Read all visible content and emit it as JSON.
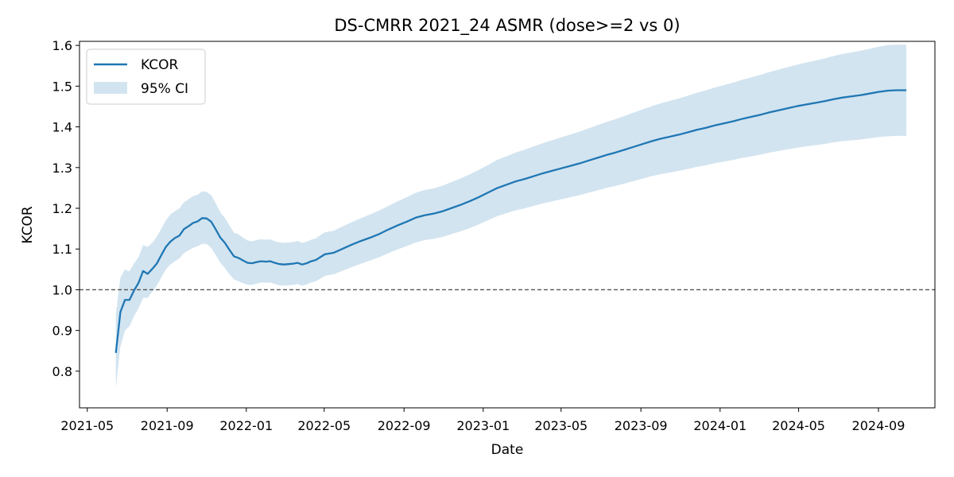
{
  "chart_data": {
    "type": "line",
    "title": "DS-CMRR 2021_24 ASMR (dose>=2 vs 0)",
    "xlabel": "Date",
    "ylabel": "KCOR",
    "x_ticks": [
      "2021-05",
      "2021-09",
      "2022-01",
      "2022-05",
      "2022-09",
      "2023-01",
      "2023-05",
      "2023-09",
      "2024-01",
      "2024-05",
      "2024-09"
    ],
    "y_ticks": [
      "0.8",
      "0.9",
      "1.0",
      "1.1",
      "1.2",
      "1.3",
      "1.4",
      "1.5",
      "1.6"
    ],
    "ylim": [
      0.71,
      1.61
    ],
    "xlim": [
      "2021-04-19",
      "2024-11-27"
    ],
    "reference_line": {
      "y": 1.0,
      "style": "dashed",
      "color": "#555555"
    },
    "legend": {
      "position": "upper-left",
      "entries": [
        "KCOR",
        "95% CI"
      ]
    },
    "grid": false,
    "colors": {
      "line": "#1f77b4",
      "band": "#1f77b4",
      "band_opacity": 0.2
    },
    "series": [
      {
        "name": "KCOR",
        "points": [
          [
            "2021-06-14",
            0.845
          ],
          [
            "2021-06-21",
            0.945
          ],
          [
            "2021-06-28",
            0.975
          ],
          [
            "2021-07-05",
            0.975
          ],
          [
            "2021-07-12",
            0.998
          ],
          [
            "2021-07-19",
            1.017
          ],
          [
            "2021-07-26",
            1.046
          ],
          [
            "2021-08-02",
            1.039
          ],
          [
            "2021-08-09",
            1.051
          ],
          [
            "2021-08-16",
            1.064
          ],
          [
            "2021-08-23",
            1.085
          ],
          [
            "2021-08-30",
            1.105
          ],
          [
            "2021-09-06",
            1.118
          ],
          [
            "2021-09-13",
            1.127
          ],
          [
            "2021-09-20",
            1.133
          ],
          [
            "2021-09-27",
            1.149
          ],
          [
            "2021-10-04",
            1.156
          ],
          [
            "2021-10-11",
            1.164
          ],
          [
            "2021-10-18",
            1.168
          ],
          [
            "2021-10-25",
            1.176
          ],
          [
            "2021-11-01",
            1.175
          ],
          [
            "2021-11-08",
            1.167
          ],
          [
            "2021-11-15",
            1.148
          ],
          [
            "2021-11-22",
            1.128
          ],
          [
            "2021-11-29",
            1.115
          ],
          [
            "2021-12-06",
            1.098
          ],
          [
            "2021-12-13",
            1.082
          ],
          [
            "2021-12-20",
            1.078
          ],
          [
            "2021-12-27",
            1.072
          ],
          [
            "2022-01-03",
            1.066
          ],
          [
            "2022-01-10",
            1.065
          ],
          [
            "2022-01-17",
            1.068
          ],
          [
            "2022-01-24",
            1.07
          ],
          [
            "2022-01-31",
            1.069
          ],
          [
            "2022-02-07",
            1.07
          ],
          [
            "2022-02-14",
            1.066
          ],
          [
            "2022-02-21",
            1.063
          ],
          [
            "2022-02-28",
            1.062
          ],
          [
            "2022-03-07",
            1.063
          ],
          [
            "2022-03-14",
            1.064
          ],
          [
            "2022-03-21",
            1.066
          ],
          [
            "2022-03-28",
            1.062
          ],
          [
            "2022-04-04",
            1.065
          ],
          [
            "2022-04-11",
            1.07
          ],
          [
            "2022-04-18",
            1.073
          ],
          [
            "2022-04-25",
            1.08
          ],
          [
            "2022-05-02",
            1.087
          ],
          [
            "2022-05-16",
            1.091
          ],
          [
            "2022-05-30",
            1.101
          ],
          [
            "2022-06-13",
            1.111
          ],
          [
            "2022-06-27",
            1.12
          ],
          [
            "2022-07-11",
            1.128
          ],
          [
            "2022-07-25",
            1.137
          ],
          [
            "2022-08-08",
            1.148
          ],
          [
            "2022-08-22",
            1.158
          ],
          [
            "2022-09-05",
            1.167
          ],
          [
            "2022-09-19",
            1.177
          ],
          [
            "2022-10-03",
            1.183
          ],
          [
            "2022-10-17",
            1.187
          ],
          [
            "2022-10-31",
            1.193
          ],
          [
            "2022-11-14",
            1.201
          ],
          [
            "2022-11-28",
            1.209
          ],
          [
            "2022-12-12",
            1.218
          ],
          [
            "2022-12-26",
            1.228
          ],
          [
            "2023-01-09",
            1.239
          ],
          [
            "2023-01-23",
            1.25
          ],
          [
            "2023-02-06",
            1.258
          ],
          [
            "2023-02-20",
            1.266
          ],
          [
            "2023-03-06",
            1.272
          ],
          [
            "2023-03-20",
            1.279
          ],
          [
            "2023-04-03",
            1.286
          ],
          [
            "2023-04-17",
            1.292
          ],
          [
            "2023-05-01",
            1.298
          ],
          [
            "2023-05-15",
            1.304
          ],
          [
            "2023-05-29",
            1.31
          ],
          [
            "2023-06-12",
            1.317
          ],
          [
            "2023-06-26",
            1.324
          ],
          [
            "2023-07-10",
            1.331
          ],
          [
            "2023-07-24",
            1.337
          ],
          [
            "2023-08-07",
            1.344
          ],
          [
            "2023-08-21",
            1.351
          ],
          [
            "2023-09-04",
            1.358
          ],
          [
            "2023-09-18",
            1.365
          ],
          [
            "2023-10-02",
            1.371
          ],
          [
            "2023-10-16",
            1.376
          ],
          [
            "2023-10-30",
            1.381
          ],
          [
            "2023-11-13",
            1.387
          ],
          [
            "2023-11-27",
            1.393
          ],
          [
            "2023-12-11",
            1.398
          ],
          [
            "2023-12-25",
            1.404
          ],
          [
            "2024-01-08",
            1.409
          ],
          [
            "2024-01-22",
            1.414
          ],
          [
            "2024-02-05",
            1.42
          ],
          [
            "2024-02-19",
            1.425
          ],
          [
            "2024-03-04",
            1.43
          ],
          [
            "2024-03-18",
            1.436
          ],
          [
            "2024-04-01",
            1.441
          ],
          [
            "2024-04-15",
            1.446
          ],
          [
            "2024-04-29",
            1.451
          ],
          [
            "2024-05-13",
            1.455
          ],
          [
            "2024-05-27",
            1.459
          ],
          [
            "2024-06-10",
            1.463
          ],
          [
            "2024-06-24",
            1.468
          ],
          [
            "2024-07-08",
            1.472
          ],
          [
            "2024-07-22",
            1.475
          ],
          [
            "2024-08-05",
            1.478
          ],
          [
            "2024-08-19",
            1.482
          ],
          [
            "2024-09-02",
            1.486
          ],
          [
            "2024-09-16",
            1.489
          ],
          [
            "2024-09-30",
            1.49
          ],
          [
            "2024-10-14",
            1.49
          ]
        ]
      }
    ],
    "ci_band": {
      "name": "95% CI",
      "points": [
        [
          "2021-06-14",
          0.76,
          0.94
        ],
        [
          "2021-06-21",
          0.86,
          1.03
        ],
        [
          "2021-06-28",
          0.9,
          1.05
        ],
        [
          "2021-07-05",
          0.91,
          1.045
        ],
        [
          "2021-07-12",
          0.935,
          1.065
        ],
        [
          "2021-07-19",
          0.955,
          1.08
        ],
        [
          "2021-07-26",
          0.98,
          1.11
        ],
        [
          "2021-08-02",
          0.98,
          1.105
        ],
        [
          "2021-08-09",
          0.995,
          1.115
        ],
        [
          "2021-08-16",
          1.01,
          1.13
        ],
        [
          "2021-08-23",
          1.03,
          1.15
        ],
        [
          "2021-08-30",
          1.05,
          1.17
        ],
        [
          "2021-09-06",
          1.062,
          1.185
        ],
        [
          "2021-09-13",
          1.07,
          1.193
        ],
        [
          "2021-09-20",
          1.077,
          1.2
        ],
        [
          "2021-09-27",
          1.09,
          1.215
        ],
        [
          "2021-10-04",
          1.097,
          1.222
        ],
        [
          "2021-10-11",
          1.103,
          1.23
        ],
        [
          "2021-10-18",
          1.107,
          1.233
        ],
        [
          "2021-10-25",
          1.113,
          1.242
        ],
        [
          "2021-11-01",
          1.112,
          1.24
        ],
        [
          "2021-11-08",
          1.103,
          1.232
        ],
        [
          "2021-11-15",
          1.085,
          1.212
        ],
        [
          "2021-11-22",
          1.066,
          1.19
        ],
        [
          "2021-11-29",
          1.053,
          1.176
        ],
        [
          "2021-12-06",
          1.038,
          1.158
        ],
        [
          "2021-12-13",
          1.025,
          1.14
        ],
        [
          "2021-12-20",
          1.021,
          1.136
        ],
        [
          "2021-12-27",
          1.016,
          1.128
        ],
        [
          "2022-01-03",
          1.012,
          1.121
        ],
        [
          "2022-01-10",
          1.012,
          1.119
        ],
        [
          "2022-01-17",
          1.015,
          1.122
        ],
        [
          "2022-01-24",
          1.018,
          1.124
        ],
        [
          "2022-01-31",
          1.017,
          1.123
        ],
        [
          "2022-02-07",
          1.018,
          1.124
        ],
        [
          "2022-02-14",
          1.014,
          1.119
        ],
        [
          "2022-02-21",
          1.011,
          1.116
        ],
        [
          "2022-02-28",
          1.01,
          1.115
        ],
        [
          "2022-03-07",
          1.011,
          1.116
        ],
        [
          "2022-03-14",
          1.012,
          1.117
        ],
        [
          "2022-03-21",
          1.014,
          1.12
        ],
        [
          "2022-03-28",
          1.01,
          1.115
        ],
        [
          "2022-04-04",
          1.013,
          1.118
        ],
        [
          "2022-04-11",
          1.018,
          1.123
        ],
        [
          "2022-04-18",
          1.021,
          1.126
        ],
        [
          "2022-04-25",
          1.027,
          1.134
        ],
        [
          "2022-05-02",
          1.034,
          1.141
        ],
        [
          "2022-05-16",
          1.038,
          1.145
        ],
        [
          "2022-05-30",
          1.047,
          1.156
        ],
        [
          "2022-06-13",
          1.056,
          1.166
        ],
        [
          "2022-06-27",
          1.064,
          1.176
        ],
        [
          "2022-07-11",
          1.072,
          1.185
        ],
        [
          "2022-07-25",
          1.08,
          1.195
        ],
        [
          "2022-08-08",
          1.09,
          1.206
        ],
        [
          "2022-08-22",
          1.099,
          1.217
        ],
        [
          "2022-09-05",
          1.107,
          1.227
        ],
        [
          "2022-09-19",
          1.116,
          1.238
        ],
        [
          "2022-10-03",
          1.122,
          1.245
        ],
        [
          "2022-10-17",
          1.125,
          1.249
        ],
        [
          "2022-10-31",
          1.13,
          1.256
        ],
        [
          "2022-11-14",
          1.137,
          1.265
        ],
        [
          "2022-11-28",
          1.144,
          1.274
        ],
        [
          "2022-12-12",
          1.152,
          1.284
        ],
        [
          "2022-12-26",
          1.161,
          1.295
        ],
        [
          "2023-01-09",
          1.171,
          1.307
        ],
        [
          "2023-01-23",
          1.181,
          1.319
        ],
        [
          "2023-02-06",
          1.188,
          1.328
        ],
        [
          "2023-02-20",
          1.195,
          1.337
        ],
        [
          "2023-03-06",
          1.2,
          1.344
        ],
        [
          "2023-03-20",
          1.206,
          1.352
        ],
        [
          "2023-04-03",
          1.212,
          1.36
        ],
        [
          "2023-04-17",
          1.217,
          1.367
        ],
        [
          "2023-05-01",
          1.222,
          1.374
        ],
        [
          "2023-05-15",
          1.227,
          1.381
        ],
        [
          "2023-05-29",
          1.232,
          1.388
        ],
        [
          "2023-06-12",
          1.238,
          1.396
        ],
        [
          "2023-06-26",
          1.244,
          1.404
        ],
        [
          "2023-07-10",
          1.25,
          1.412
        ],
        [
          "2023-07-24",
          1.255,
          1.419
        ],
        [
          "2023-08-07",
          1.261,
          1.427
        ],
        [
          "2023-08-21",
          1.267,
          1.435
        ],
        [
          "2023-09-04",
          1.273,
          1.443
        ],
        [
          "2023-09-18",
          1.279,
          1.451
        ],
        [
          "2023-10-02",
          1.284,
          1.458
        ],
        [
          "2023-10-16",
          1.288,
          1.464
        ],
        [
          "2023-10-30",
          1.292,
          1.47
        ],
        [
          "2023-11-13",
          1.297,
          1.477
        ],
        [
          "2023-11-27",
          1.302,
          1.484
        ],
        [
          "2023-12-11",
          1.306,
          1.49
        ],
        [
          "2023-12-25",
          1.311,
          1.497
        ],
        [
          "2024-01-08",
          1.315,
          1.503
        ],
        [
          "2024-01-22",
          1.319,
          1.509
        ],
        [
          "2024-02-05",
          1.324,
          1.516
        ],
        [
          "2024-02-19",
          1.328,
          1.522
        ],
        [
          "2024-03-04",
          1.332,
          1.528
        ],
        [
          "2024-03-18",
          1.337,
          1.535
        ],
        [
          "2024-04-01",
          1.341,
          1.541
        ],
        [
          "2024-04-15",
          1.345,
          1.547
        ],
        [
          "2024-04-29",
          1.349,
          1.553
        ],
        [
          "2024-05-13",
          1.352,
          1.558
        ],
        [
          "2024-05-27",
          1.355,
          1.563
        ],
        [
          "2024-06-10",
          1.358,
          1.568
        ],
        [
          "2024-06-24",
          1.362,
          1.574
        ],
        [
          "2024-07-08",
          1.365,
          1.579
        ],
        [
          "2024-07-22",
          1.367,
          1.583
        ],
        [
          "2024-08-05",
          1.369,
          1.587
        ],
        [
          "2024-08-19",
          1.372,
          1.592
        ],
        [
          "2024-09-02",
          1.375,
          1.597
        ],
        [
          "2024-09-16",
          1.377,
          1.601
        ],
        [
          "2024-09-30",
          1.378,
          1.602
        ],
        [
          "2024-10-14",
          1.378,
          1.602
        ]
      ]
    }
  }
}
